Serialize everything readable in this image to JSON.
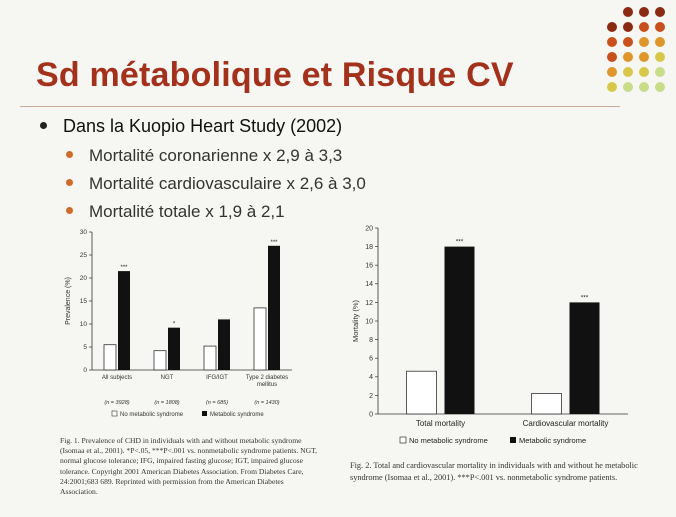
{
  "slide": {
    "title": "Sd métabolique et Risque CV",
    "bullet": "Dans la Kuopio Heart Study (2002)",
    "subbullets": [
      "Mortalité coronarienne x 2,9  à 3,3",
      "Mortalité cardiovasculaire  x 2,6 à 3,0",
      "Mortalité totale  x 1,9 à 2,1"
    ],
    "colors": {
      "title": "#a3311c",
      "subbullet_dot": "#d06a2a",
      "dots": [
        "#8b2a12",
        "#c8501c",
        "#e0962a",
        "#d8c84a",
        "#c8dc8a"
      ]
    }
  },
  "captions": {
    "fig1": "Fig. 1. Prevalence of CHD in individuals with and without metabolic syndrome (Isomaa et al., 2001). *P<.05, ***P<.001 vs. nonmetabolic syndrome patients. NGT, normal glucose tolerance; IFG, impaired fasting glucose; IGT, impaired glucose tolerance. Copyright 2001 American Diabetes Association. From Diabetes Care, 24:2001;683 689. Reprinted with permission from the American Diabetes Association.",
    "fig2": "Fig. 2. Total and cardiovascular mortality in individuals with and without he metabolic syndrome (Isomaa et al., 2001). ***P<.001 vs. nonmetabolic syndrome patients."
  },
  "chart_data": [
    {
      "type": "bar",
      "ylabel": "Prevalence (%)",
      "ylim": [
        0,
        30
      ],
      "yticks": [
        "0",
        "5",
        "10",
        "15",
        "20",
        "25",
        "30"
      ],
      "categories": [
        "All subjects",
        "NGT",
        "IFG/IGT",
        "Type 2 diabetes mellitus"
      ],
      "ns": [
        "(n = 3928)",
        "(n = 1808)",
        "(n = 685)",
        "(n = 1430)"
      ],
      "series": [
        {
          "name": "No metabolic syndrome",
          "values": [
            5.5,
            4.2,
            5.2,
            13.5
          ]
        },
        {
          "name": "Metabolic syndrome",
          "values": [
            21.5,
            9.2,
            11,
            27
          ]
        }
      ],
      "significance": [
        "***",
        "*",
        "",
        "***"
      ],
      "legend": [
        "No metabolic syndrome",
        "Metabolic syndrome"
      ]
    },
    {
      "type": "bar",
      "ylabel": "Mortality (%)",
      "ylim": [
        0,
        20
      ],
      "yticks": [
        "0",
        "2",
        "4",
        "6",
        "8",
        "10",
        "12",
        "14",
        "16",
        "18",
        "20"
      ],
      "categories": [
        "Total mortality",
        "Cardiovascular mortality"
      ],
      "series": [
        {
          "name": "No metabolic syndrome",
          "values": [
            4.6,
            2.2
          ]
        },
        {
          "name": "Metabolic syndrome",
          "values": [
            18,
            12
          ]
        }
      ],
      "significance": [
        "***",
        "***"
      ],
      "legend": [
        "No metabolic syndrome",
        "Metabolic syndrome"
      ]
    }
  ]
}
